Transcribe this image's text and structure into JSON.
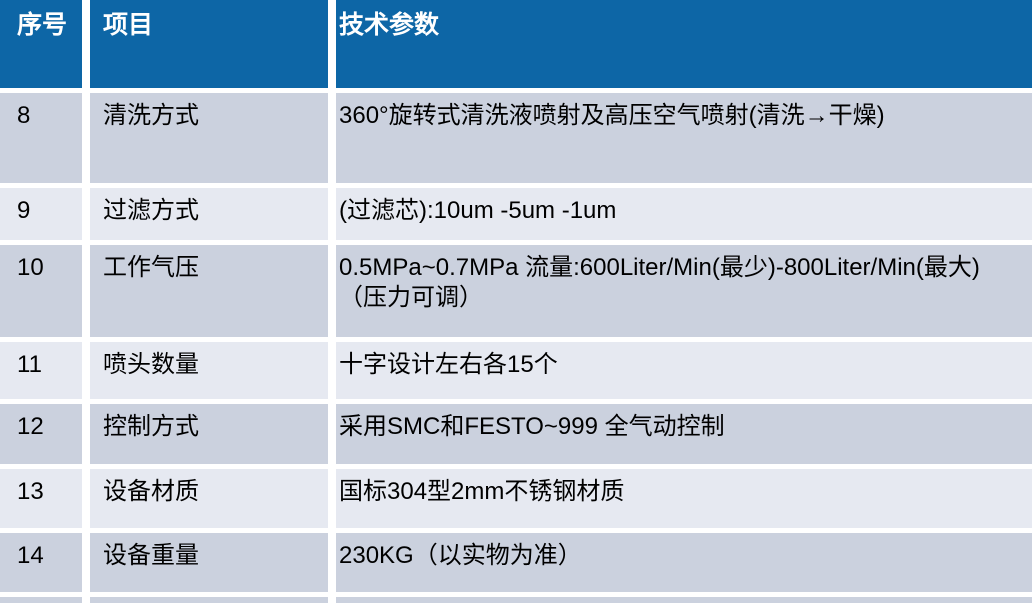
{
  "table": {
    "columns": [
      {
        "label": "序号"
      },
      {
        "label": "项目"
      },
      {
        "label": "技术参数"
      }
    ],
    "rows": [
      {
        "index": "8",
        "item": "清洗方式",
        "params": "360°旋转式清洗液喷射及高压空气喷射(清洗→干燥)"
      },
      {
        "index": "9",
        "item": "过滤方式",
        "params": "(过滤芯):10um -5um -1um"
      },
      {
        "index": "10",
        "item": "工作气压",
        "params": "0.5MPa~0.7MPa 流量:600Liter/Min(最少)-800Liter/Min(最大)（压力可调）"
      },
      {
        "index": "11",
        "item": "喷头数量",
        "params": "十字设计左右各15个"
      },
      {
        "index": "12",
        "item": "控制方式",
        "params": "采用SMC和FESTO~999 全气动控制"
      },
      {
        "index": "13",
        "item": "设备材质",
        "params": "国标304型2mm不锈钢材质"
      },
      {
        "index": "14",
        "item": "设备重量",
        "params": "230KG（以实物为准）"
      }
    ],
    "colors": {
      "header_bg": "#0D66A6",
      "row_dark": "#CBD1DE",
      "row_light": "#E6E9F1",
      "header_text": "#FFFFFF",
      "body_text": "#000000"
    }
  }
}
